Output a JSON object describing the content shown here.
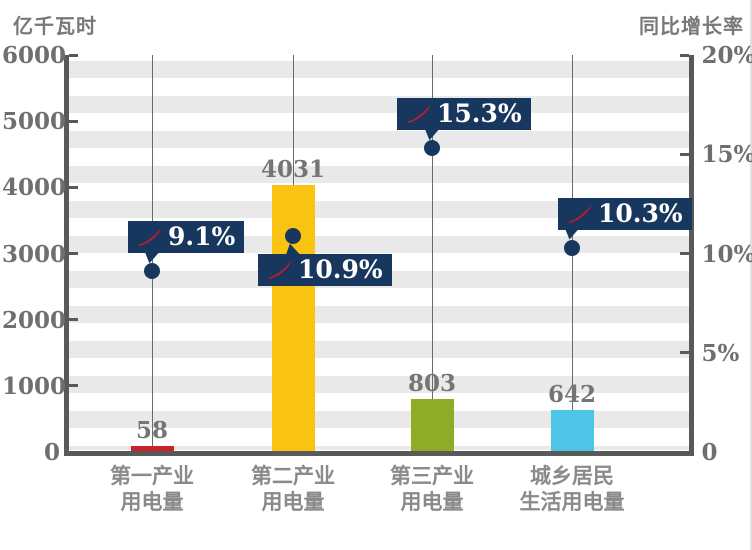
{
  "chart_data": {
    "type": "combo-bar-point",
    "title": "",
    "categories": [
      "第一产业用电量",
      "第二产业用电量",
      "第三产业用电量",
      "城乡居民生活用电量"
    ],
    "category_lines": [
      [
        "第一产业",
        "用电量"
      ],
      [
        "第二产业",
        "用电量"
      ],
      [
        "第三产业",
        "用电量"
      ],
      [
        "城乡居民",
        "生活用电量"
      ]
    ],
    "left_axis": {
      "title": "亿千瓦时",
      "min": 0,
      "max": 6000,
      "tick_values": [
        6000,
        5000,
        4000,
        3000,
        2000,
        1000,
        0
      ],
      "tick_labels": [
        "6000",
        "5000",
        "4000",
        "3000",
        "2000",
        "1000",
        "0"
      ]
    },
    "right_axis": {
      "title": "同比增长率",
      "min": 0,
      "max": 20,
      "tick_values": [
        20,
        15,
        10,
        5,
        0
      ],
      "tick_labels": [
        "20%",
        "15%",
        "10%",
        "5%",
        "0"
      ]
    },
    "series": [
      {
        "name": "用电量",
        "type": "bar",
        "axis": "left",
        "unit": "亿千瓦时",
        "values": [
          58,
          4031,
          803,
          642
        ],
        "value_labels": [
          "58",
          "4031",
          "803",
          "642"
        ],
        "bar_colors": [
          "#cb2127",
          "#fbc311",
          "#8fab28",
          "#4ec4e6"
        ]
      },
      {
        "name": "同比增长率",
        "type": "point",
        "axis": "right",
        "unit": "%",
        "values": [
          9.1,
          10.9,
          15.3,
          10.3
        ],
        "point_labels": [
          "9.1%",
          "10.9%",
          "15.3%",
          "10.3%"
        ],
        "label_side": [
          "above",
          "below",
          "above",
          "above"
        ]
      }
    ],
    "grid": "horizontal-stripes",
    "legend": "none"
  },
  "colors": {
    "background": "#ffffff",
    "stripe": "#e9e9e9",
    "axis": "#595959",
    "tick_text": "#6f6f6f",
    "category_text": "#8a8a8a",
    "value_text": "#757575",
    "callout_bg": "#17375e",
    "callout_text": "#ffffff",
    "dot": "#17375e",
    "swoosh_red": "#c21b2e",
    "drop_line": "#6a6a6a"
  },
  "icons": {
    "growth_arrow": "red-swoosh-up-icon"
  }
}
